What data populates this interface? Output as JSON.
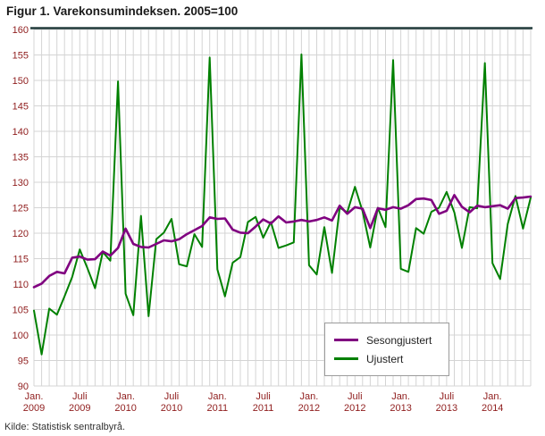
{
  "title": "Figur 1. Varekonsumindeksen. 2005=100",
  "source": "Kilde: Statistisk sentralbyrå.",
  "colors": {
    "axis_label": "#8f1d1d",
    "grid": "#d4d4d4",
    "top_rule": "#223c3c",
    "title_text": "#1a1a1a",
    "source_text": "#333333",
    "legend_border": "#9b9b9b"
  },
  "chart_data": {
    "type": "line",
    "title": "Figur 1. Varekonsumindeksen. 2005=100",
    "x_unit": "month",
    "x_start": "2009-01",
    "x_end": "2014-06",
    "ylim": [
      90,
      160
    ],
    "y_ticks": [
      90,
      95,
      100,
      105,
      110,
      115,
      120,
      125,
      130,
      135,
      140,
      145,
      150,
      155,
      160
    ],
    "x_ticks": [
      {
        "index": 0,
        "line1": "Jan.",
        "line2": "2009"
      },
      {
        "index": 6,
        "line1": "Juli",
        "line2": "2009"
      },
      {
        "index": 12,
        "line1": "Jan.",
        "line2": "2010"
      },
      {
        "index": 18,
        "line1": "Juli",
        "line2": "2010"
      },
      {
        "index": 24,
        "line1": "Jan.",
        "line2": "2011"
      },
      {
        "index": 30,
        "line1": "Juli",
        "line2": "2011"
      },
      {
        "index": 36,
        "line1": "Jan.",
        "line2": "2012"
      },
      {
        "index": 42,
        "line1": "Juli",
        "line2": "2012"
      },
      {
        "index": 48,
        "line1": "Jan.",
        "line2": "2013"
      },
      {
        "index": 54,
        "line1": "Juli",
        "line2": "2013"
      },
      {
        "index": 60,
        "line1": "Jan.",
        "line2": "2014"
      }
    ],
    "grid": true,
    "legend_position": "inside-bottom-right",
    "series": [
      {
        "name": "Sesongjustert",
        "color": "#800080",
        "width": 2.6,
        "values": [
          109.4,
          110.1,
          111.6,
          112.4,
          112.1,
          115.2,
          115.4,
          114.8,
          114.9,
          116.4,
          115.6,
          117.1,
          120.9,
          117.9,
          117.3,
          117.2,
          117.9,
          118.6,
          118.4,
          118.8,
          119.8,
          120.6,
          121.4,
          123.1,
          122.8,
          122.9,
          120.7,
          120.1,
          120.0,
          121.3,
          122.7,
          121.9,
          123.3,
          122.1,
          122.3,
          122.6,
          122.3,
          122.6,
          123.1,
          122.5,
          125.4,
          123.8,
          125.1,
          124.8,
          121.0,
          124.9,
          124.6,
          125.1,
          124.8,
          125.5,
          126.7,
          126.8,
          126.5,
          123.8,
          124.4,
          127.5,
          125.2,
          124.1,
          125.4,
          125.1,
          125.3,
          125.5,
          124.8,
          126.9,
          127.0,
          127.2
        ]
      },
      {
        "name": "Ujustert",
        "color": "#008000",
        "width": 2.0,
        "values": [
          104.8,
          96.2,
          105.2,
          104.0,
          107.6,
          111.4,
          116.8,
          113.1,
          109.2,
          116.3,
          114.6,
          149.8,
          108.1,
          103.9,
          123.4,
          103.7,
          118.8,
          120.1,
          122.8,
          113.9,
          113.5,
          119.8,
          117.3,
          154.5,
          112.9,
          107.6,
          114.2,
          115.3,
          122.2,
          123.2,
          119.1,
          122.2,
          117.1,
          117.6,
          118.2,
          155.1,
          113.7,
          111.9,
          121.2,
          112.2,
          125.0,
          124.1,
          129.1,
          124.3,
          117.2,
          125.0,
          121.2,
          154.0,
          113.0,
          112.4,
          121.0,
          119.9,
          124.2,
          125.0,
          128.1,
          124.1,
          117.1,
          125.1,
          124.9,
          153.4,
          114.1,
          111.0,
          121.8,
          127.3,
          120.9,
          127.0
        ]
      }
    ]
  }
}
